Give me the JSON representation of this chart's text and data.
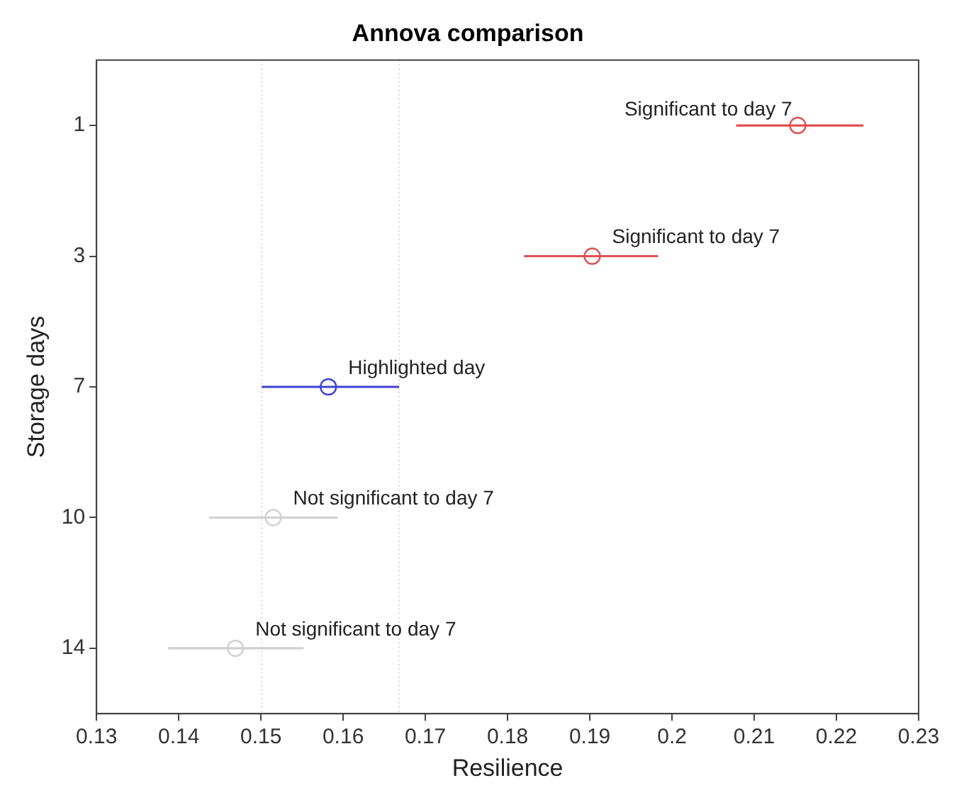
{
  "chart_data": {
    "type": "scatter",
    "orientation": "horizontal",
    "title": "Annova comparison",
    "xlabel": "Resilience",
    "ylabel": "Storage days",
    "categories": [
      "1",
      "3",
      "7",
      "10",
      "14"
    ],
    "values": [
      0.2153,
      0.1903,
      0.1582,
      0.1515,
      0.1469
    ],
    "errors": [
      [
        0.2078,
        0.2233
      ],
      [
        0.182,
        0.1983
      ],
      [
        0.1501,
        0.1668
      ],
      [
        0.1437,
        0.1593
      ],
      [
        0.1387,
        0.1552
      ]
    ],
    "colors": [
      "#e05050",
      "#e05050",
      "#4040d0",
      "#d0d0d0",
      "#d0d0d0"
    ],
    "marker": "circle",
    "xlim": [
      0.13,
      0.23
    ],
    "xticks": [
      0.13,
      0.14,
      0.15,
      0.16,
      0.17,
      0.18,
      0.19,
      0.2,
      0.21,
      0.22,
      0.23
    ],
    "grid": false,
    "ref_lines": [
      {
        "axis": "x",
        "value": 0.1501,
        "color": "#d8d8d8",
        "line_style": "dotted"
      },
      {
        "axis": "x",
        "value": 0.1668,
        "color": "#d8d8d8",
        "line_style": "dotted"
      }
    ],
    "annotations": [
      {
        "text": "Significant to day 7",
        "x": 0.2153,
        "y": "1"
      },
      {
        "text": "Significant to day 7",
        "x": 0.1903,
        "y": "3"
      },
      {
        "text": "Highlighted day",
        "x": 0.1582,
        "y": "7"
      },
      {
        "text": "Not significant to day 7",
        "x": 0.1515,
        "y": "10"
      },
      {
        "text": "Not significant to day 7",
        "x": 0.1469,
        "y": "14"
      }
    ]
  }
}
